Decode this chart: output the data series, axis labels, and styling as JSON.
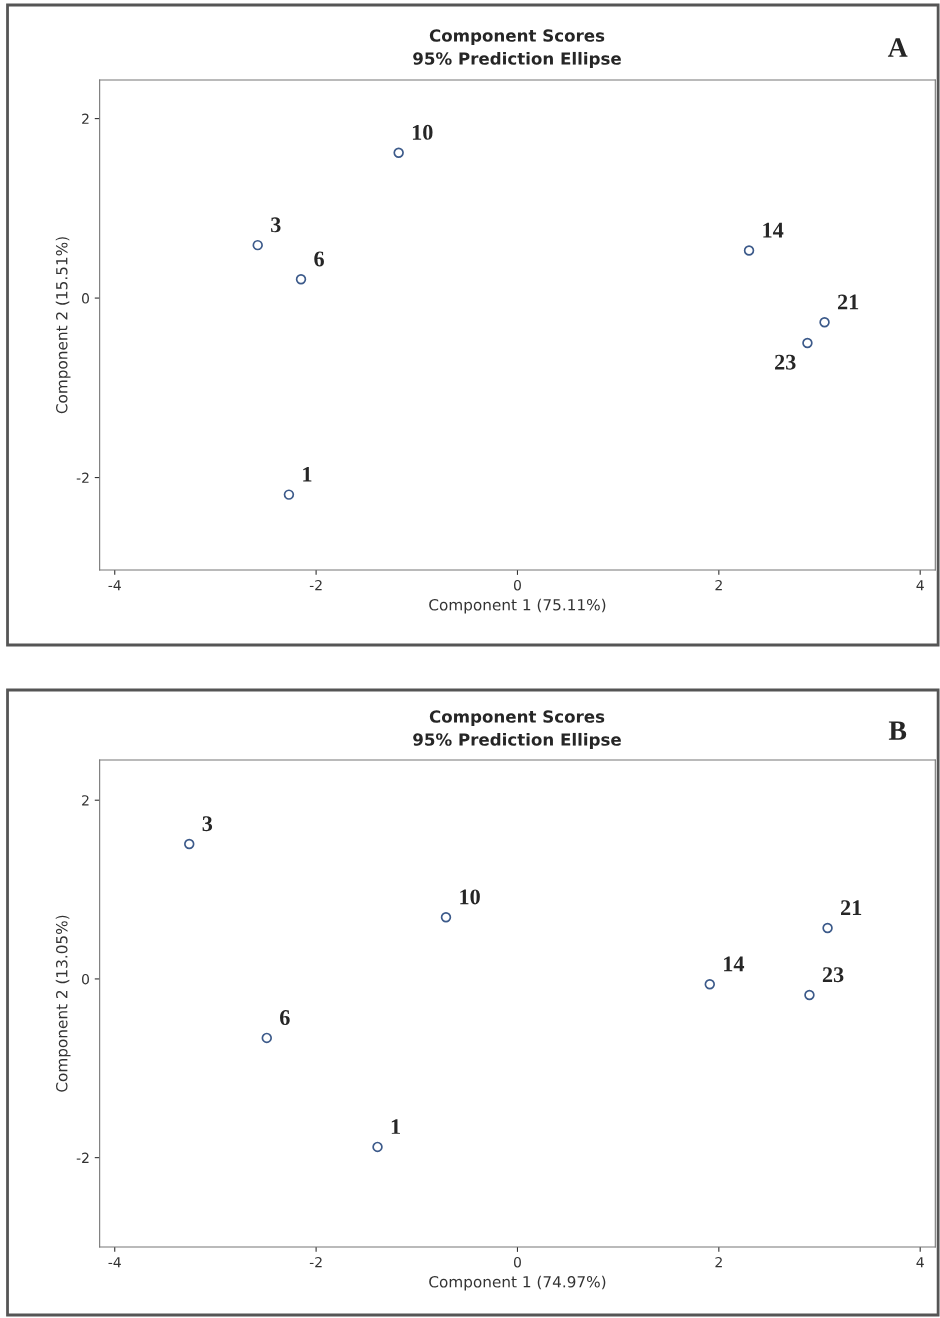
{
  "chart_data": [
    {
      "type": "scatter",
      "title": "Component Scores",
      "subtitle": "95% Prediction Ellipse",
      "xlabel": "Component 1 (75.11%)",
      "ylabel": "Component 2 (15.51%)",
      "x": [
        -2.27,
        -2.58,
        -2.15,
        -1.18,
        2.3,
        3.05,
        2.88
      ],
      "series": [
        {
          "color": "#3c5a8a",
          "values": [
            -2.19,
            0.59,
            0.21,
            1.62,
            0.53,
            -0.27,
            -0.5
          ]
        }
      ],
      "marker": "circle",
      "grid": false,
      "legend": false,
      "xlim": [
        -4.15,
        4.15
      ],
      "xticks": [
        -4,
        -2,
        0,
        2,
        4
      ],
      "ylim": [
        -3.03,
        2.43
      ],
      "yticks": [
        -2,
        0,
        2
      ],
      "annotations": [
        "A",
        {
          "text": "1",
          "x": -2.27,
          "y": -2.19
        },
        {
          "text": "3",
          "x": -2.58,
          "y": 0.59
        },
        {
          "text": "6",
          "x": -2.15,
          "y": 0.21
        },
        {
          "text": "10",
          "x": -1.18,
          "y": 1.62
        },
        {
          "text": "14",
          "x": 2.3,
          "y": 0.53
        },
        {
          "text": "21",
          "x": 3.05,
          "y": -0.27
        },
        {
          "text": "23",
          "x": 2.88,
          "y": -0.5
        }
      ]
    },
    {
      "type": "scatter",
      "title": "Component Scores",
      "subtitle": "95% Prediction Ellipse",
      "xlabel": "Component 1 (74.97%)",
      "ylabel": "Component 2 (13.05%)",
      "x": [
        -1.39,
        -3.26,
        -2.49,
        -0.71,
        1.91,
        3.08,
        2.9
      ],
      "series": [
        {
          "color": "#3c5a8a",
          "values": [
            -1.88,
            1.51,
            -0.66,
            0.69,
            -0.06,
            0.57,
            -0.18
          ]
        }
      ],
      "marker": "circle",
      "grid": false,
      "legend": false,
      "xlim": [
        -4.15,
        4.15
      ],
      "xticks": [
        -4,
        -2,
        0,
        2,
        4
      ],
      "ylim": [
        -3.0,
        2.45
      ],
      "yticks": [
        -2,
        0,
        2
      ],
      "annotations": [
        "B",
        {
          "text": "1",
          "x": -1.39,
          "y": -1.88
        },
        {
          "text": "3",
          "x": -3.26,
          "y": 1.51
        },
        {
          "text": "6",
          "x": -2.49,
          "y": -0.66
        },
        {
          "text": "10",
          "x": -0.71,
          "y": 0.69
        },
        {
          "text": "14",
          "x": 1.91,
          "y": -0.06
        },
        {
          "text": "21",
          "x": 3.08,
          "y": 0.57
        },
        {
          "text": "23",
          "x": 2.9,
          "y": -0.18
        }
      ]
    }
  ]
}
